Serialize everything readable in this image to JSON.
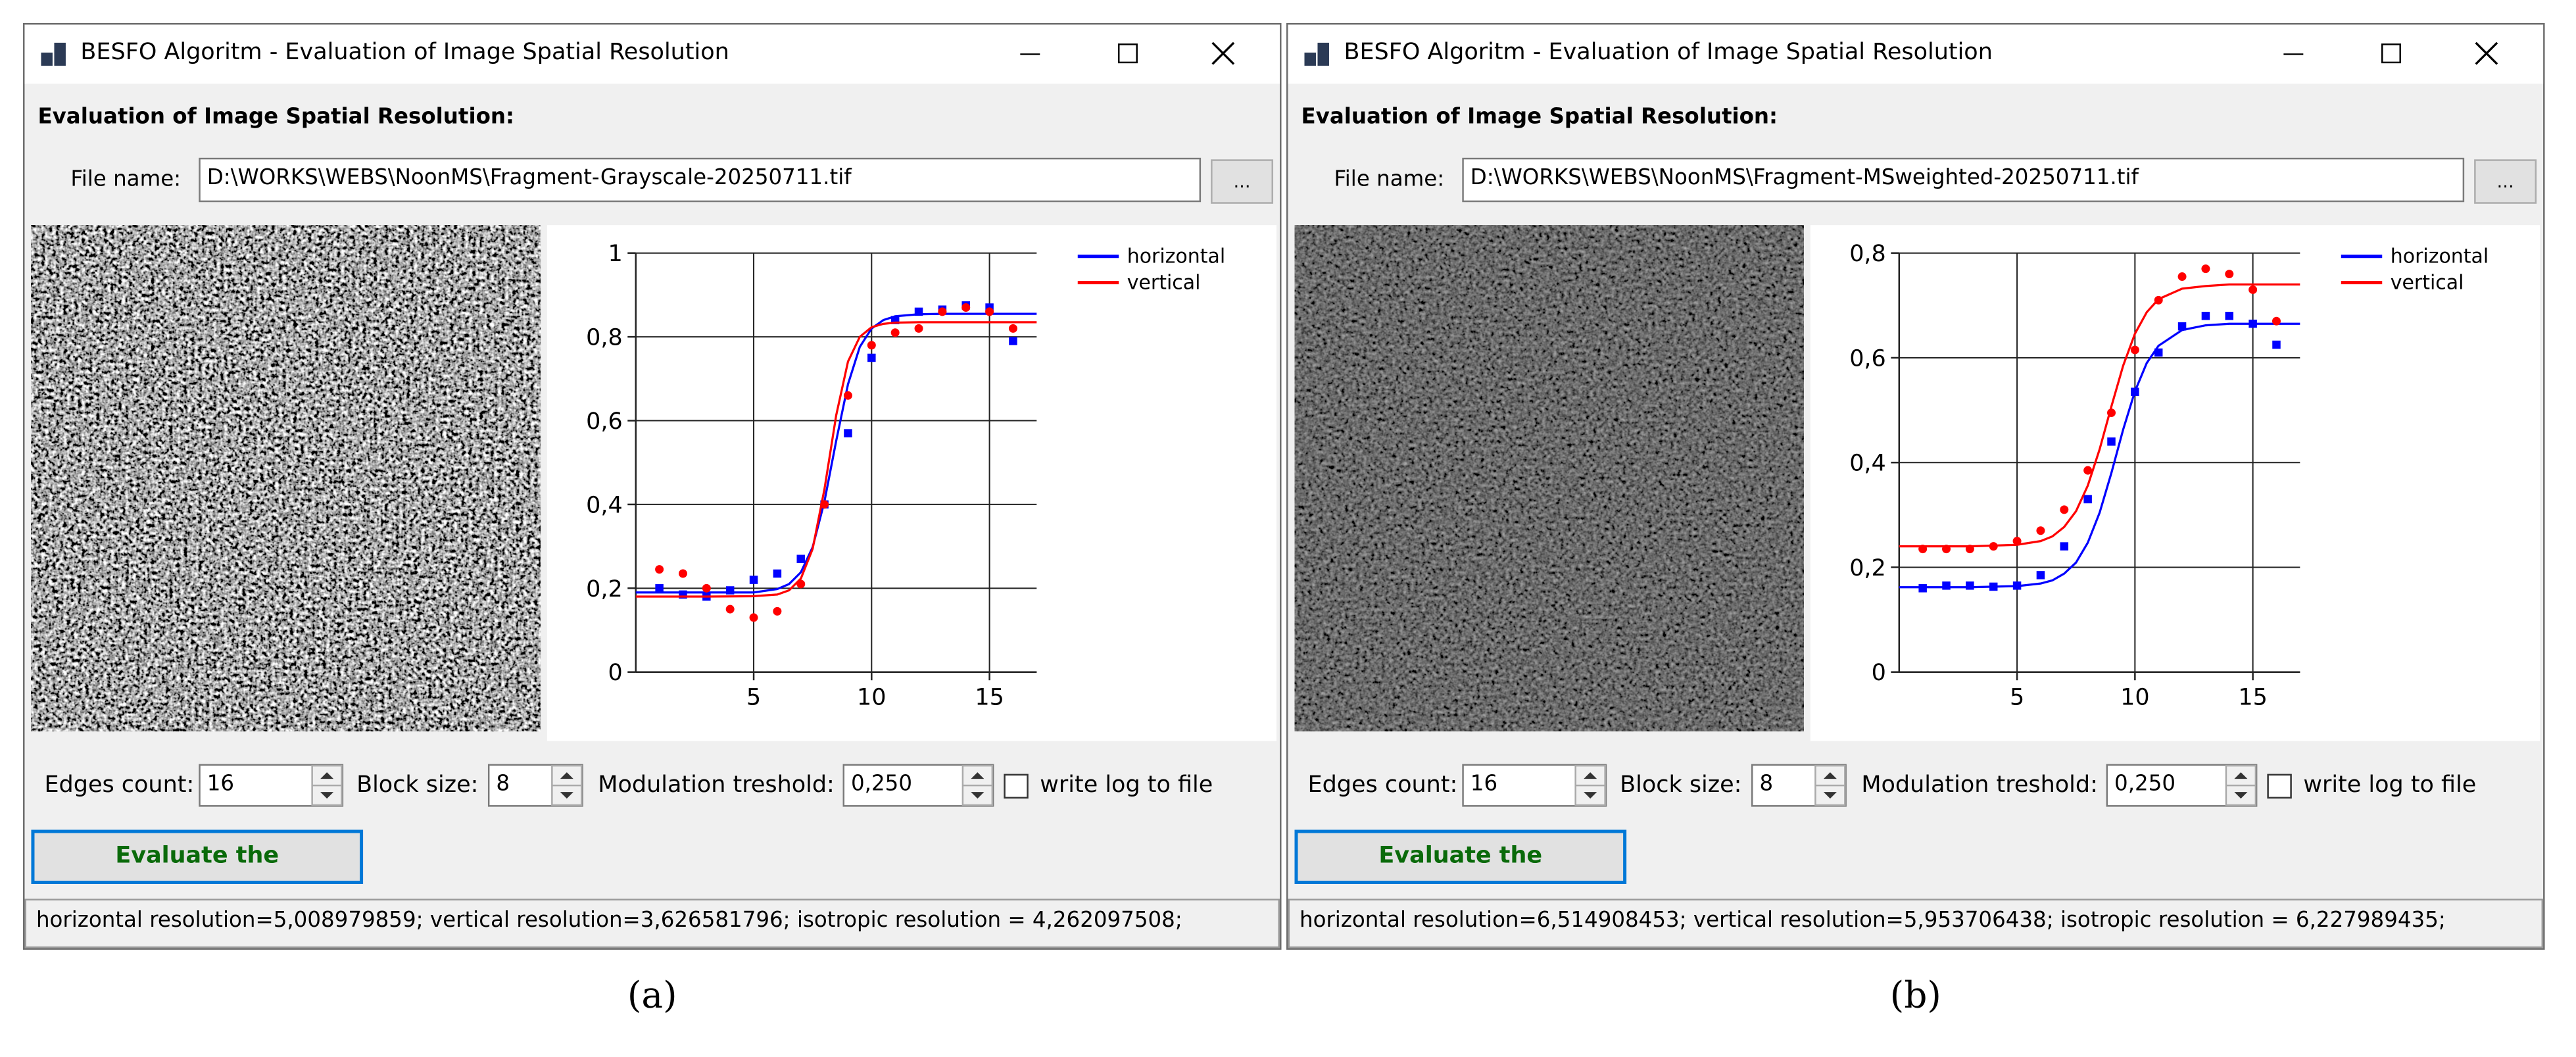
{
  "panels": [
    {
      "window_title": "BESFO Algoritm - Evaluation of Image Spatial Resolution",
      "heading": "Evaluation of Image Spatial Resolution:",
      "file_label": "File name:",
      "file_path": "D:\\WORKS\\WEBS\\NoonMS\\Fragment-Grayscale-20250711.tif",
      "browse_button": "...",
      "chart_data": {
        "type": "scatter",
        "x": [
          1,
          2,
          3,
          4,
          5,
          6,
          7,
          8,
          9,
          10,
          11,
          12,
          13,
          14,
          15,
          16
        ],
        "fit_x": [
          0,
          3,
          5,
          6,
          6.5,
          7,
          7.5,
          8,
          8.5,
          9,
          9.5,
          10,
          10.5,
          11,
          12,
          13,
          14,
          17
        ],
        "xlim": [
          0,
          17
        ],
        "xticks": [
          5,
          10,
          15
        ],
        "ylim": [
          0,
          1
        ],
        "yticks": [
          0,
          {
            "value": 0.2,
            "label": "0,2"
          },
          {
            "value": 0.4,
            "label": "0,4"
          },
          {
            "value": 0.6,
            "label": "0,6"
          },
          {
            "value": 0.8,
            "label": "0,8"
          },
          1
        ],
        "grid": true,
        "legend": "upper-right",
        "series": [
          {
            "name": "horizontal",
            "color": "#0000ff",
            "marker": "square",
            "values": [
              0.2,
              0.185,
              0.18,
              0.195,
              0.22,
              0.235,
              0.27,
              0.4,
              0.57,
              0.75,
              0.84,
              0.86,
              0.865,
              0.875,
              0.87,
              0.79
            ],
            "fit": [
              0.19,
              0.19,
              0.19,
              0.198,
              0.21,
              0.238,
              0.298,
              0.407,
              0.552,
              0.687,
              0.776,
              0.82,
              0.84,
              0.849,
              0.854,
              0.855,
              0.855,
              0.855
            ]
          },
          {
            "name": "vertical",
            "color": "#ff0000",
            "marker": "circle",
            "values": [
              0.245,
              0.235,
              0.2,
              0.15,
              0.13,
              0.145,
              0.21,
              0.4,
              0.66,
              0.78,
              0.81,
              0.82,
              0.86,
              0.87,
              0.86,
              0.82
            ],
            "fit": [
              0.18,
              0.18,
              0.181,
              0.185,
              0.195,
              0.223,
              0.294,
              0.436,
              0.613,
              0.741,
              0.8,
              0.823,
              0.831,
              0.834,
              0.835,
              0.835,
              0.835,
              0.835
            ]
          }
        ]
      },
      "edges_label": "Edges count:",
      "edges_value": 16,
      "block_label": "Block size:",
      "block_value": 8,
      "threshold_label": "Modulation treshold:",
      "threshold_value": "0,250",
      "log_checkbox": "write log to file",
      "evaluate_button": "Evaluate the",
      "result": "horizontal resolution=5,008979859; vertical resolution=3,626581796; isotropic resolution = 4,262097508;",
      "caption": "(a)"
    },
    {
      "window_title": "BESFO Algoritm - Evaluation of Image Spatial Resolution",
      "heading": "Evaluation of Image Spatial Resolution:",
      "file_label": "File name:",
      "file_path": "D:\\WORKS\\WEBS\\NoonMS\\Fragment-MSweighted-20250711.tif",
      "browse_button": "...",
      "chart_data": {
        "type": "scatter",
        "x": [
          1,
          2,
          3,
          4,
          5,
          6,
          7,
          8,
          9,
          10,
          11,
          12,
          13,
          14,
          15,
          16
        ],
        "fit_x": [
          0,
          3,
          5,
          6,
          6.5,
          7,
          7.5,
          8,
          8.5,
          9,
          9.5,
          10,
          10.5,
          11,
          12,
          13,
          14,
          17
        ],
        "xlim": [
          0,
          17
        ],
        "xticks": [
          5,
          10,
          15
        ],
        "ylim": [
          0,
          0.8
        ],
        "yticks": [
          0,
          {
            "value": 0.2,
            "label": "0,2"
          },
          {
            "value": 0.4,
            "label": "0,4"
          },
          {
            "value": 0.6,
            "label": "0,6"
          },
          {
            "value": 0.8,
            "label": "0,8"
          }
        ],
        "grid": true,
        "legend": "upper-right",
        "series": [
          {
            "name": "horizontal",
            "color": "#0000ff",
            "marker": "square",
            "values": [
              0.16,
              0.165,
              0.165,
              0.163,
              0.165,
              0.185,
              0.24,
              0.33,
              0.44,
              0.535,
              0.61,
              0.66,
              0.68,
              0.68,
              0.665,
              0.625
            ],
            "fit": [
              0.162,
              0.162,
              0.164,
              0.169,
              0.175,
              0.188,
              0.209,
              0.247,
              0.304,
              0.38,
              0.463,
              0.536,
              0.59,
              0.623,
              0.653,
              0.662,
              0.665,
              0.665
            ]
          },
          {
            "name": "vertical",
            "color": "#ff0000",
            "marker": "circle",
            "values": [
              0.235,
              0.235,
              0.235,
              0.24,
              0.25,
              0.27,
              0.31,
              0.385,
              0.495,
              0.615,
              0.71,
              0.755,
              0.77,
              0.76,
              0.73,
              0.67
            ],
            "fit": [
              0.24,
              0.24,
              0.243,
              0.25,
              0.259,
              0.277,
              0.307,
              0.356,
              0.425,
              0.507,
              0.585,
              0.646,
              0.687,
              0.712,
              0.732,
              0.737,
              0.74,
              0.74
            ]
          }
        ]
      },
      "edges_label": "Edges count:",
      "edges_value": 16,
      "block_label": "Block size:",
      "block_value": 8,
      "threshold_label": "Modulation treshold:",
      "threshold_value": "0,250",
      "log_checkbox": "write log to file",
      "evaluate_button": "Evaluate the",
      "result": "horizontal resolution=6,514908453; vertical resolution=5,953706438; isotropic resolution = 6,227989435;",
      "caption": "(b)"
    }
  ]
}
